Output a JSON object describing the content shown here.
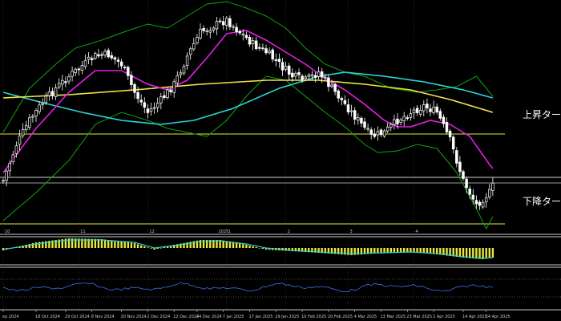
{
  "colors": {
    "background": "#000000",
    "candle": "#ffffff",
    "sma_fast": "#e61ee6",
    "sma_mid": "#f0e04a",
    "sma_slow": "#2ad3d3",
    "bollinger": "#0ea50e",
    "level_line": "#e8e83a",
    "separator": "#c8c8c8",
    "macd_hist": "#e8e83a",
    "macd_signal": "#2ad3d3",
    "osc_line": "#3f6fe0"
  },
  "labels": {
    "uptrend_label": "上昇ターゲ",
    "downtrend_label": "下降ターゲ"
  },
  "month_markers": [
    {
      "text": "10",
      "bar": 0
    },
    {
      "text": "11",
      "bar": 23
    },
    {
      "text": "12",
      "bar": 44
    },
    {
      "text": "2025",
      "bar": 65
    },
    {
      "text": "1",
      "bar": 68
    },
    {
      "text": "2",
      "bar": 86
    },
    {
      "text": "3",
      "bar": 105
    },
    {
      "text": "4",
      "bar": 125
    }
  ],
  "time_axis": [
    {
      "text": "ep 2024",
      "bar": 0
    },
    {
      "text": "18 Oct 2024",
      "bar": 10
    },
    {
      "text": "29 Oct 2024",
      "bar": 19
    },
    {
      "text": "8 Nov 2024",
      "bar": 27
    },
    {
      "text": "20 Nov 2024",
      "bar": 36
    },
    {
      "text": "2 Dec 2024",
      "bar": 44
    },
    {
      "text": "12 Dec 2024",
      "bar": 52
    },
    {
      "text": "24 Dec 2024",
      "bar": 59
    },
    {
      "text": "7 Jan 2025",
      "bar": 67
    },
    {
      "text": "17 Jan 2025",
      "bar": 75
    },
    {
      "text": "29 Jan 2025",
      "bar": 83
    },
    {
      "text": "10 Feb 2025",
      "bar": 91
    },
    {
      "text": "20 Feb 2025",
      "bar": 99
    },
    {
      "text": "4 Mar 2025",
      "bar": 107
    },
    {
      "text": "13 Mar 2025",
      "bar": 115
    },
    {
      "text": "23 Mar 2025",
      "bar": 123
    },
    {
      "text": "2 Apr 2025",
      "bar": 131
    },
    {
      "text": "14 Apr 2025",
      "bar": 140
    },
    {
      "text": "24 Apr 2025",
      "bar": 147
    }
  ]
}
